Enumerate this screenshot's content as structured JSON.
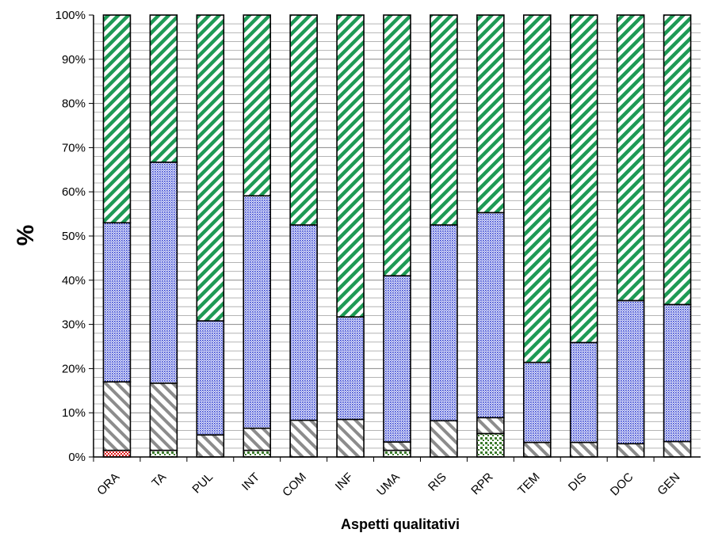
{
  "chart_data": {
    "type": "bar",
    "stacked": true,
    "xlabel": "Aspetti qualitativi",
    "ylabel": "%",
    "ylim": [
      0,
      100
    ],
    "yticks": [
      "0%",
      "10%",
      "20%",
      "30%",
      "40%",
      "50%",
      "60%",
      "70%",
      "80%",
      "90%",
      "100%"
    ],
    "categories": [
      "ORA",
      "TA",
      "PUL",
      "INT",
      "COM",
      "INF",
      "UMA",
      "RIS",
      "RPR",
      "TEM",
      "DIS",
      "DOC",
      "GEN"
    ],
    "grid": "horizontal",
    "legend": "none",
    "series": [
      {
        "color": "#e02020",
        "pattern": "checker",
        "values": [
          1.5,
          0,
          0,
          0,
          0,
          0,
          0,
          0,
          0,
          0,
          0,
          0,
          0
        ]
      },
      {
        "color": "#3a7a2a",
        "pattern": "dots",
        "values": [
          0,
          1.5,
          0,
          1.5,
          0,
          0,
          1.5,
          0,
          5.3,
          0,
          0,
          0,
          0
        ]
      },
      {
        "color": "#8c8c8c",
        "pattern": "diagonal-light",
        "values": [
          15.5,
          15.2,
          5.0,
          5.0,
          8.3,
          8.5,
          1.9,
          8.2,
          3.6,
          3.3,
          3.3,
          3.0,
          3.5
        ]
      },
      {
        "color": "#2a3ad0",
        "pattern": "dense-dots",
        "values": [
          36.0,
          50.0,
          25.8,
          52.6,
          44.2,
          23.2,
          37.6,
          44.3,
          46.4,
          18.1,
          22.6,
          32.4,
          31.0
        ]
      },
      {
        "color": "#1e9a55",
        "pattern": "diagonal-wide",
        "values": [
          47.0,
          33.3,
          69.2,
          40.9,
          47.5,
          68.3,
          59.0,
          47.5,
          44.7,
          78.6,
          74.1,
          64.6,
          65.5
        ]
      }
    ]
  }
}
